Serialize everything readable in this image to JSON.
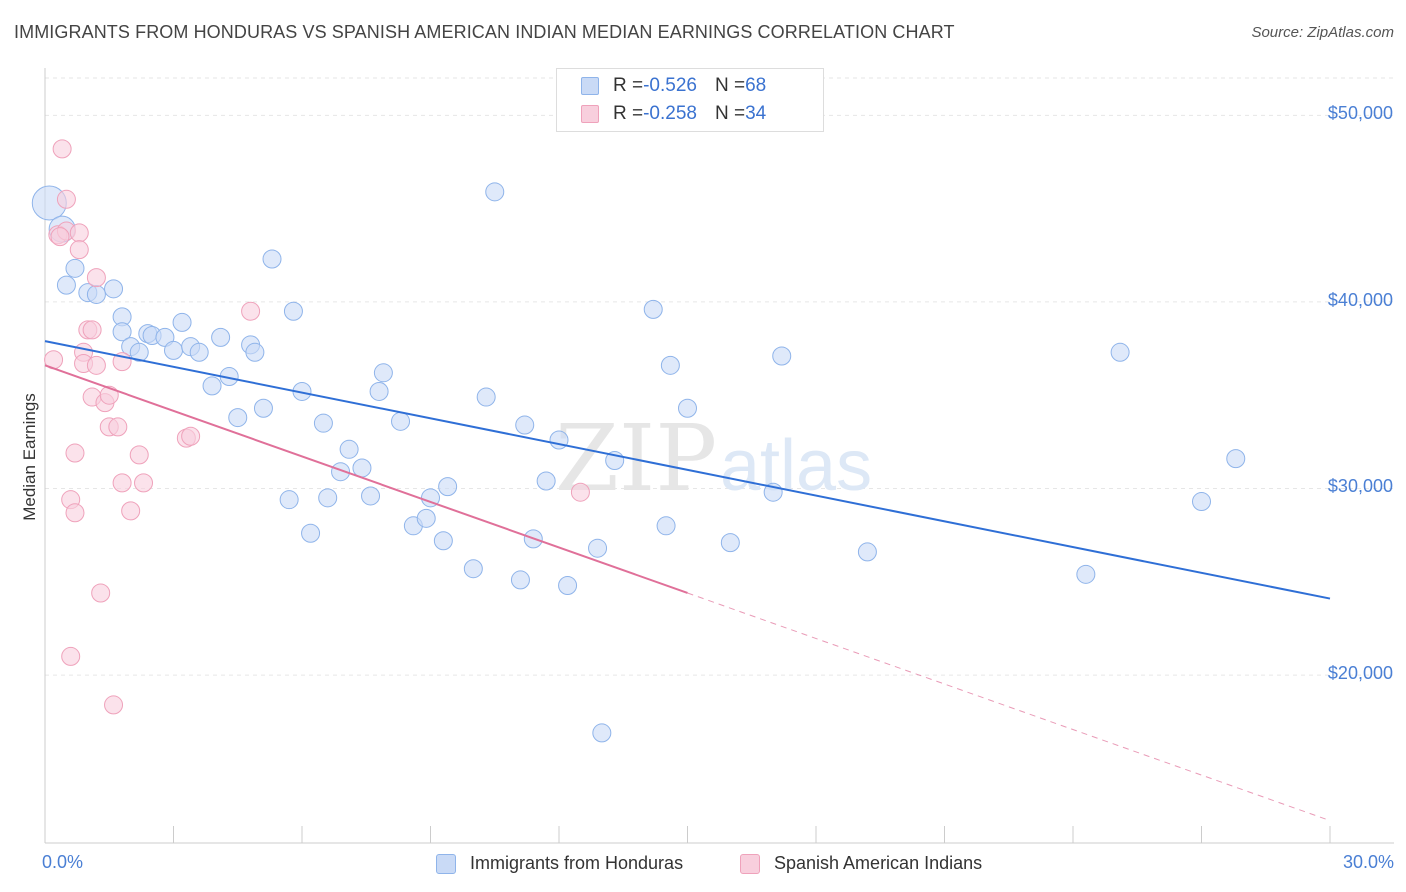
{
  "title": "IMMIGRANTS FROM HONDURAS VS SPANISH AMERICAN INDIAN MEDIAN EARNINGS CORRELATION CHART",
  "source": "Source: ZipAtlas.com",
  "watermark": {
    "zip": "ZIP",
    "atlas": "atlas"
  },
  "legend": {
    "rows": [
      {
        "r_label": "R = ",
        "r_value": "-0.526",
        "n_label": "N = ",
        "n_value": "68"
      },
      {
        "r_label": "R = ",
        "r_value": "-0.258",
        "n_label": "N = ",
        "n_value": "34"
      }
    ]
  },
  "chart_data": {
    "type": "scatter",
    "xlabel": "",
    "ylabel": "Median Earnings",
    "xlim": [
      0,
      30
    ],
    "ylim": [
      11000,
      52000
    ],
    "x_tick_labels": [
      {
        "value": 0,
        "label": "0.0%"
      },
      {
        "value": 30,
        "label": "30.0%"
      }
    ],
    "y_tick_labels": [
      {
        "value": 20000,
        "label": "$20,000"
      },
      {
        "value": 30000,
        "label": "$30,000"
      },
      {
        "value": 40000,
        "label": "$40,000"
      },
      {
        "value": 50000,
        "label": "$50,000"
      }
    ],
    "grid": true,
    "series": [
      {
        "name": "Immigrants from Honduras",
        "color": "#8fb4ea",
        "fill": "#c9daf6",
        "trend": {
          "x": [
            0,
            30
          ],
          "y": [
            37900,
            24100
          ],
          "color": "#2f6fd6"
        },
        "points": [
          [
            0.1,
            45300
          ],
          [
            0.4,
            43900
          ],
          [
            0.5,
            40900
          ],
          [
            0.7,
            41800
          ],
          [
            1.0,
            40500
          ],
          [
            1.6,
            40700
          ],
          [
            1.2,
            40400
          ],
          [
            1.8,
            39200
          ],
          [
            1.8,
            38400
          ],
          [
            2.0,
            37600
          ],
          [
            2.2,
            37300
          ],
          [
            2.4,
            38300
          ],
          [
            2.5,
            38200
          ],
          [
            2.8,
            38100
          ],
          [
            3.0,
            37400
          ],
          [
            3.2,
            38900
          ],
          [
            3.4,
            37600
          ],
          [
            3.6,
            37300
          ],
          [
            3.9,
            35500
          ],
          [
            4.1,
            38100
          ],
          [
            4.3,
            36000
          ],
          [
            4.5,
            33800
          ],
          [
            4.8,
            37700
          ],
          [
            4.9,
            37300
          ],
          [
            5.1,
            34300
          ],
          [
            5.3,
            42300
          ],
          [
            5.7,
            29400
          ],
          [
            5.8,
            39500
          ],
          [
            6.0,
            35200
          ],
          [
            6.2,
            27600
          ],
          [
            6.5,
            33500
          ],
          [
            6.6,
            29500
          ],
          [
            6.9,
            30900
          ],
          [
            7.1,
            32100
          ],
          [
            7.4,
            31100
          ],
          [
            7.6,
            29600
          ],
          [
            7.8,
            35200
          ],
          [
            7.9,
            36200
          ],
          [
            8.3,
            33600
          ],
          [
            8.6,
            28000
          ],
          [
            8.9,
            28400
          ],
          [
            9.0,
            29500
          ],
          [
            9.3,
            27200
          ],
          [
            9.4,
            30100
          ],
          [
            10.0,
            25700
          ],
          [
            10.3,
            34900
          ],
          [
            10.5,
            45900
          ],
          [
            11.1,
            25100
          ],
          [
            11.2,
            33400
          ],
          [
            11.4,
            27300
          ],
          [
            11.7,
            30400
          ],
          [
            12.0,
            32600
          ],
          [
            12.2,
            24800
          ],
          [
            12.9,
            26800
          ],
          [
            13.0,
            16900
          ],
          [
            13.3,
            31500
          ],
          [
            14.2,
            39600
          ],
          [
            14.5,
            28000
          ],
          [
            14.6,
            36600
          ],
          [
            15.0,
            34300
          ],
          [
            16.0,
            27100
          ],
          [
            17.0,
            29800
          ],
          [
            17.2,
            37100
          ],
          [
            19.2,
            26600
          ],
          [
            24.3,
            25400
          ],
          [
            25.1,
            37300
          ],
          [
            27.0,
            29300
          ],
          [
            27.8,
            31600
          ]
        ]
      },
      {
        "name": "Spanish American Indians",
        "color": "#efa2bb",
        "fill": "#f8cfdd",
        "trend": {
          "x": [
            0,
            15.0
          ],
          "y": [
            36600,
            24400
          ],
          "color": "#e07099"
        },
        "trend_dashed": {
          "x": [
            15.0,
            30
          ],
          "y": [
            24400,
            12200
          ]
        },
        "points": [
          [
            0.2,
            36900
          ],
          [
            0.3,
            43600
          ],
          [
            0.4,
            48200
          ],
          [
            0.5,
            45500
          ],
          [
            0.5,
            43800
          ],
          [
            0.6,
            29400
          ],
          [
            0.6,
            21000
          ],
          [
            0.7,
            28700
          ],
          [
            0.7,
            31900
          ],
          [
            0.8,
            43700
          ],
          [
            0.8,
            42800
          ],
          [
            0.9,
            37300
          ],
          [
            0.9,
            36700
          ],
          [
            1.0,
            38500
          ],
          [
            1.1,
            38500
          ],
          [
            1.1,
            34900
          ],
          [
            1.2,
            41300
          ],
          [
            1.2,
            36600
          ],
          [
            1.3,
            24400
          ],
          [
            1.4,
            34600
          ],
          [
            1.5,
            33300
          ],
          [
            1.5,
            35000
          ],
          [
            1.6,
            18400
          ],
          [
            1.7,
            33300
          ],
          [
            1.8,
            30300
          ],
          [
            1.8,
            36800
          ],
          [
            2.0,
            28800
          ],
          [
            2.2,
            31800
          ],
          [
            2.3,
            30300
          ],
          [
            3.3,
            32700
          ],
          [
            3.4,
            32800
          ],
          [
            4.8,
            39500
          ],
          [
            12.5,
            29800
          ],
          [
            0.35,
            43500
          ]
        ]
      }
    ]
  }
}
